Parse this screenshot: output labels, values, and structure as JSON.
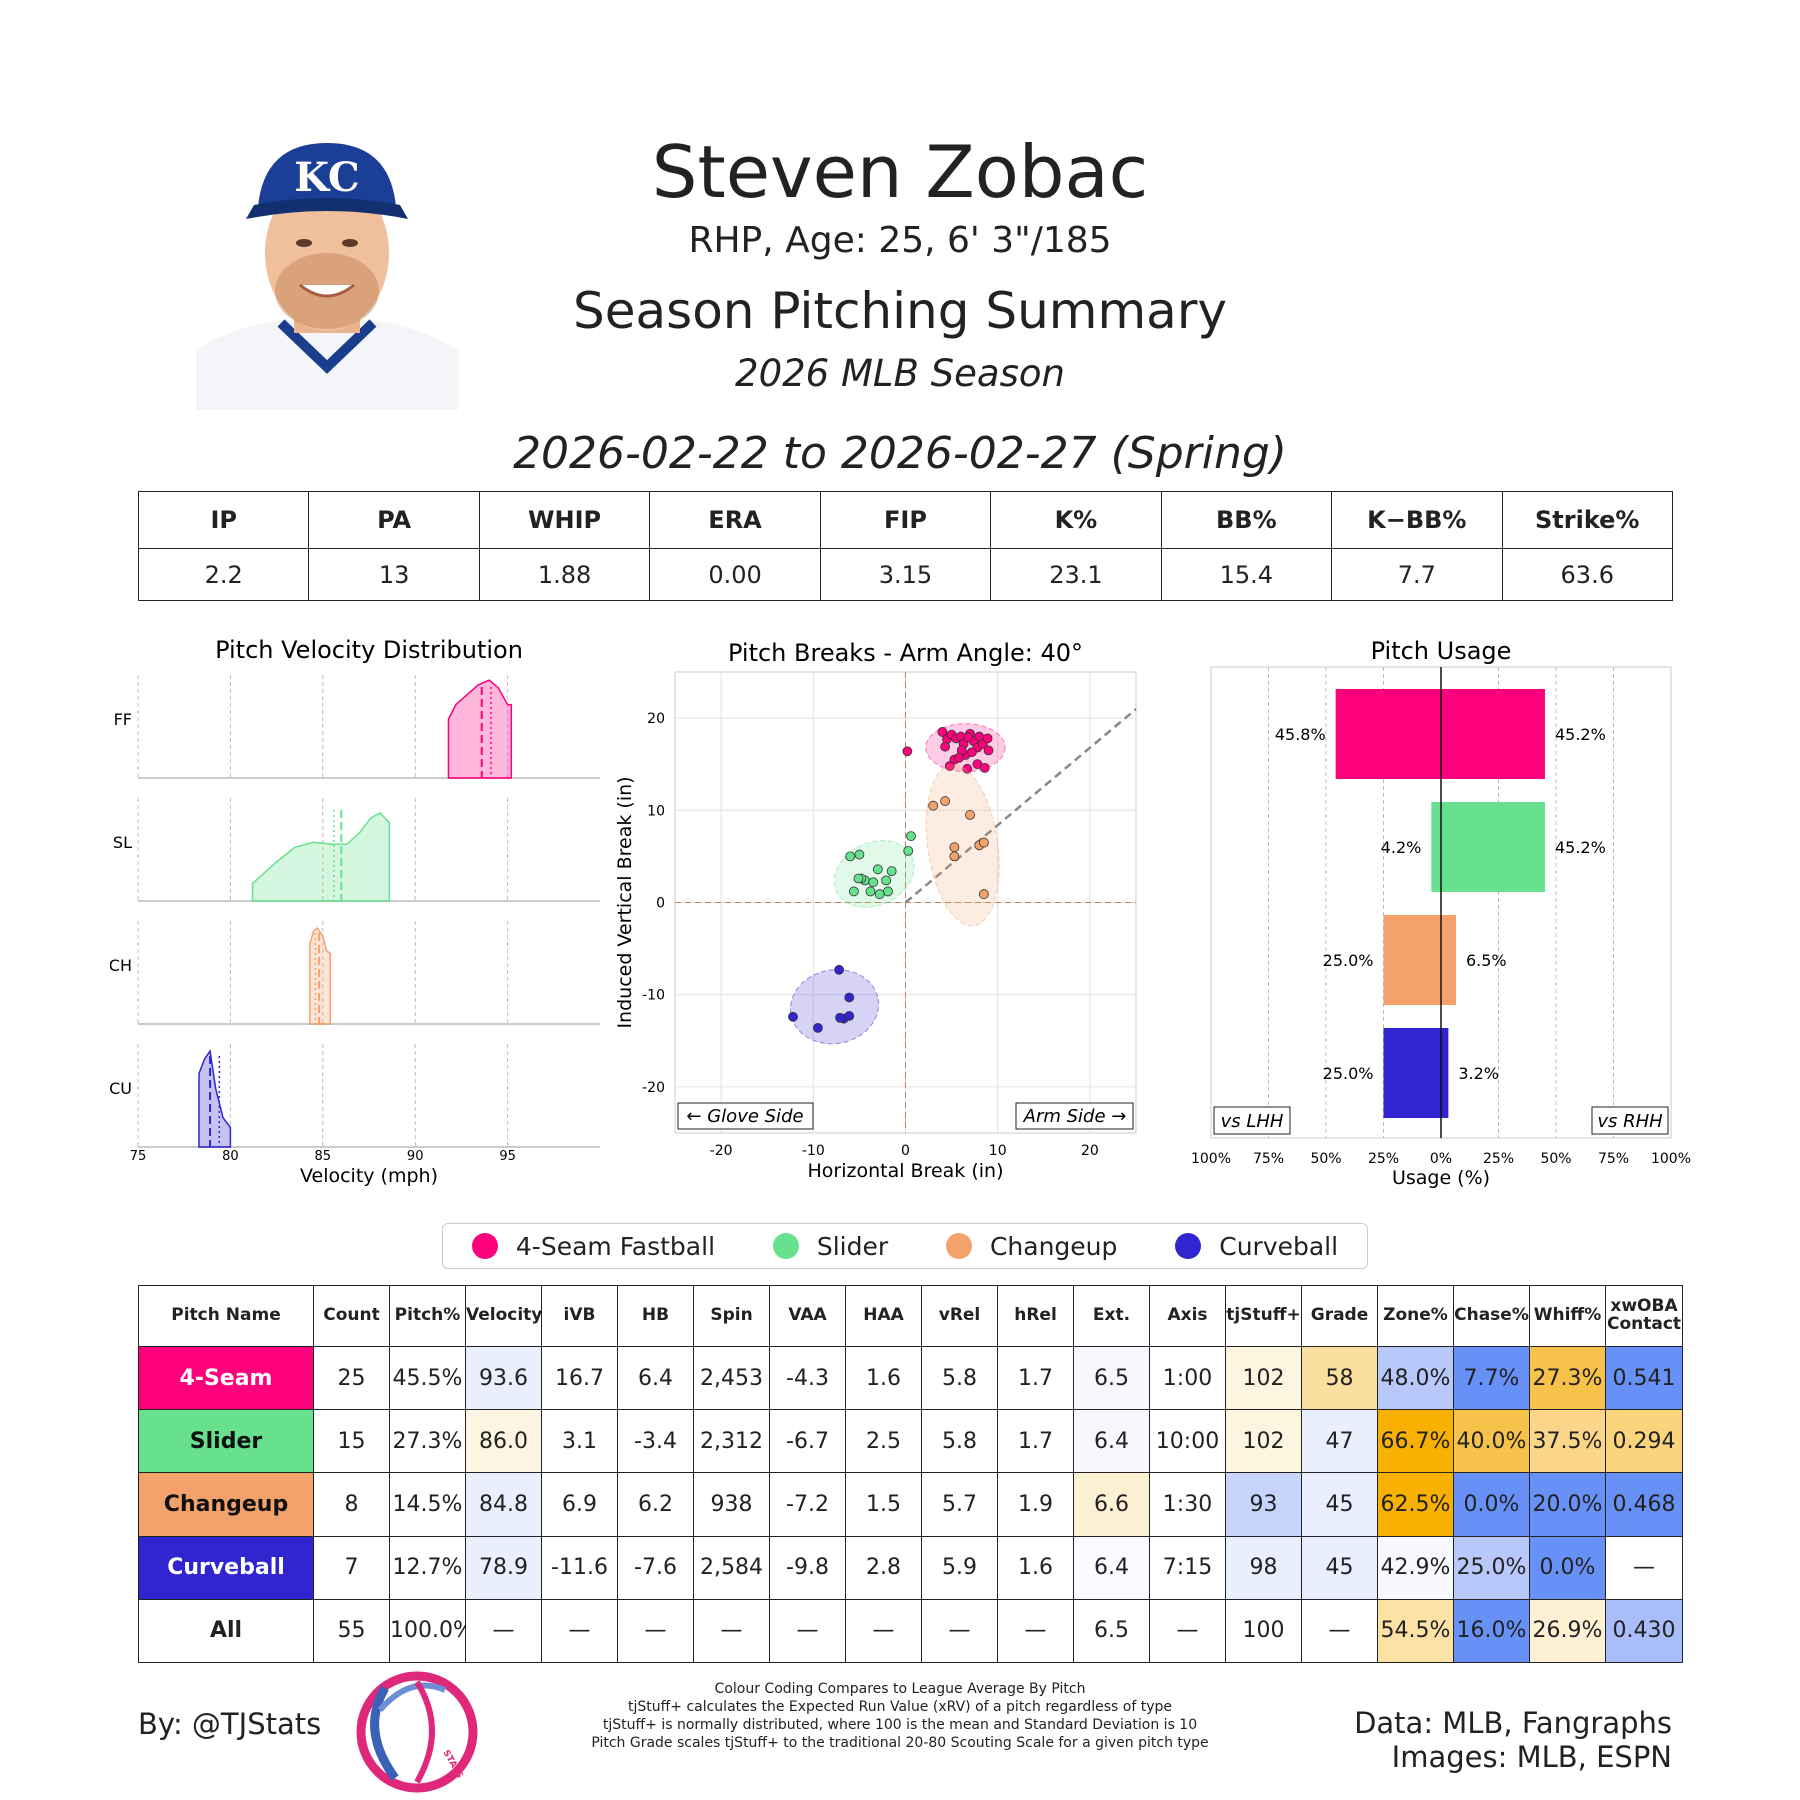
{
  "header": {
    "name": "Steven Zobac",
    "bio": "RHP, Age: 25, 6' 3\"/185",
    "summary_title": "Season Pitching Summary",
    "season": "2026 MLB Season",
    "date_range": "2026-02-22 to 2026-02-27 (Spring)",
    "cap_logo_text": "KC"
  },
  "season_stats": {
    "headers": [
      "IP",
      "PA",
      "WHIP",
      "ERA",
      "FIP",
      "K%",
      "BB%",
      "K−BB%",
      "Strike%"
    ],
    "values": [
      "2.2",
      "13",
      "1.88",
      "0.00",
      "3.15",
      "23.1",
      "15.4",
      "7.7",
      "63.6"
    ]
  },
  "pitch_colors": {
    "FF": "#FF007D",
    "SL": "#67E18D",
    "CH": "#F4A26B",
    "CU": "#3025CE"
  },
  "chart_data": [
    {
      "type": "area",
      "title": "Pitch Velocity Distribution",
      "xlabel": "Velocity (mph)",
      "xlim": [
        75,
        100
      ],
      "xticks": [
        75,
        80,
        85,
        90,
        95
      ],
      "series": [
        {
          "name": "FF",
          "x": [
            91.8,
            92.2,
            92.8,
            93.4,
            94.0,
            94.5,
            95.0,
            95.2
          ],
          "y": [
            0.6,
            0.75,
            0.85,
            0.95,
            1.0,
            0.92,
            0.75,
            0.75
          ],
          "mean": 93.6,
          "median": 94.1
        },
        {
          "name": "SL",
          "x": [
            81.2,
            82.5,
            83.5,
            84.5,
            85.5,
            86.3,
            87.0,
            87.6,
            88.1,
            88.6
          ],
          "y": [
            0.18,
            0.4,
            0.55,
            0.6,
            0.58,
            0.58,
            0.7,
            0.85,
            0.9,
            0.8
          ],
          "mean": 86.0,
          "median": 85.6
        },
        {
          "name": "CH",
          "x": [
            84.3,
            84.5,
            84.7,
            85.0,
            85.2,
            85.4
          ],
          "y": [
            0.82,
            0.95,
            0.98,
            0.9,
            0.75,
            0.72
          ],
          "mean": 84.8,
          "median": 84.6
        },
        {
          "name": "CU",
          "x": [
            78.3,
            78.6,
            78.9,
            79.2,
            79.6,
            80.0
          ],
          "y": [
            0.75,
            0.9,
            0.98,
            0.6,
            0.3,
            0.2
          ],
          "mean": 78.9,
          "median": 79.4
        }
      ]
    },
    {
      "type": "scatter",
      "title": "Pitch Breaks - Arm Angle: 40°",
      "xlabel": "Horizontal Break (in)",
      "ylabel": "Induced Vertical Break (in)",
      "xlim": [
        -25,
        25
      ],
      "ylim": [
        -25,
        25
      ],
      "xticks": [
        -20,
        -10,
        0,
        10,
        20
      ],
      "yticks": [
        -20,
        -10,
        0,
        10,
        20
      ],
      "annotations": [
        "← Glove Side",
        "Arm Side →"
      ],
      "arm_angle_deg": 40,
      "series": [
        {
          "name": "FF",
          "points": [
            [
              0.2,
              16.4
            ],
            [
              4,
              18.5
            ],
            [
              4.5,
              17.7
            ],
            [
              5,
              18.2
            ],
            [
              5.5,
              17.8
            ],
            [
              6,
              18
            ],
            [
              6.3,
              17.2
            ],
            [
              6.5,
              16
            ],
            [
              7,
              18.3
            ],
            [
              7.4,
              17.5
            ],
            [
              7.8,
              16.8
            ],
            [
              8,
              18
            ],
            [
              8.4,
              17.2
            ],
            [
              8.9,
              17.8
            ],
            [
              6.1,
              16.5
            ],
            [
              5.3,
              15.5
            ],
            [
              4.8,
              14.8
            ],
            [
              6.7,
              14.5
            ],
            [
              7.8,
              15
            ],
            [
              8.6,
              14.6
            ],
            [
              9,
              16.5
            ],
            [
              5.8,
              15.7
            ],
            [
              6.8,
              17.9
            ],
            [
              4.3,
              16.9
            ],
            [
              7.2,
              16.3
            ]
          ],
          "ellipse": {
            "cx": 6.5,
            "cy": 16.8,
            "rx": 4.3,
            "ry": 2.6,
            "rot": 0
          }
        },
        {
          "name": "SL",
          "points": [
            [
              -6,
              5
            ],
            [
              -5,
              5.2
            ],
            [
              -3,
              3.6
            ],
            [
              -1.5,
              3.4
            ],
            [
              0.6,
              7.2
            ],
            [
              0.3,
              5.6
            ],
            [
              -2.1,
              2.4
            ],
            [
              -4.4,
              2.4
            ],
            [
              -5.6,
              1.2
            ],
            [
              -3.8,
              1.2
            ],
            [
              -4.8,
              2.6
            ],
            [
              -3.5,
              2.2
            ],
            [
              -1.9,
              1.2
            ],
            [
              -2.8,
              0.9
            ],
            [
              -5.1,
              2.6
            ]
          ],
          "ellipse": {
            "cx": -3.4,
            "cy": 3.1,
            "rx": 4.5,
            "ry": 3.4,
            "rot": -25
          }
        },
        {
          "name": "CH",
          "points": [
            [
              3,
              10.5
            ],
            [
              4.3,
              11
            ],
            [
              7,
              9.5
            ],
            [
              5.3,
              6
            ],
            [
              5.3,
              5
            ],
            [
              8,
              6.2
            ],
            [
              8.5,
              6.5
            ],
            [
              8.5,
              0.9
            ]
          ],
          "ellipse": {
            "cx": 6.2,
            "cy": 6.2,
            "rx": 3.8,
            "ry": 8.8,
            "rot": -8
          }
        },
        {
          "name": "CU",
          "points": [
            [
              -7.2,
              -7.3
            ],
            [
              -12.2,
              -12.4
            ],
            [
              -9.5,
              -13.6
            ],
            [
              -6.1,
              -10.3
            ],
            [
              -6.7,
              -12.6
            ],
            [
              -6.1,
              -12.3
            ],
            [
              -7.1,
              -12.5
            ]
          ],
          "ellipse": {
            "cx": -7.7,
            "cy": -11.3,
            "rx": 4.8,
            "ry": 4.0,
            "rot": -10
          }
        }
      ]
    },
    {
      "type": "bar",
      "title": "Pitch Usage",
      "xlabel": "Usage (%)",
      "xticks": [
        "100%",
        "75%",
        "50%",
        "25%",
        "0%",
        "25%",
        "50%",
        "75%",
        "100%"
      ],
      "left_label": "vs LHH",
      "right_label": "vs RHH",
      "categories": [
        "FF",
        "SL",
        "CH",
        "CU"
      ],
      "series": [
        {
          "name": "vs LHH",
          "values": [
            45.8,
            4.2,
            25.0,
            25.0
          ],
          "labels": [
            "45.8%",
            "4.2%",
            "25.0%",
            "25.0%"
          ]
        },
        {
          "name": "vs RHH",
          "values": [
            45.2,
            45.2,
            6.5,
            3.2
          ],
          "labels": [
            "45.2%",
            "45.2%",
            "6.5%",
            "3.2%"
          ]
        }
      ]
    }
  ],
  "legend": [
    {
      "key": "FF",
      "label": "4-Seam Fastball"
    },
    {
      "key": "SL",
      "label": "Slider"
    },
    {
      "key": "CH",
      "label": "Changeup"
    },
    {
      "key": "CU",
      "label": "Curveball"
    }
  ],
  "pitch_table": {
    "headers": [
      "Pitch Name",
      "Count",
      "Pitch%",
      "Velocity",
      "iVB",
      "HB",
      "Spin",
      "VAA",
      "HAA",
      "vRel",
      "hRel",
      "Ext.",
      "Axis",
      "tjStuff+",
      "Grade",
      "Zone%",
      "Chase%",
      "Whiff%",
      "xwOBA\nContact"
    ],
    "rows": [
      {
        "name": "4-Seam",
        "key": "FF",
        "cells": [
          "25",
          "45.5%",
          "93.6",
          "16.7",
          "6.4",
          "2,453",
          "-4.3",
          "1.6",
          "5.8",
          "1.7",
          "6.5",
          "1:00",
          "102",
          "58",
          "48.0%",
          "7.7%",
          "27.3%",
          "0.541"
        ]
      },
      {
        "name": "Slider",
        "key": "SL",
        "cells": [
          "15",
          "27.3%",
          "86.0",
          "3.1",
          "-3.4",
          "2,312",
          "-6.7",
          "2.5",
          "5.8",
          "1.7",
          "6.4",
          "10:00",
          "102",
          "47",
          "66.7%",
          "40.0%",
          "37.5%",
          "0.294"
        ]
      },
      {
        "name": "Changeup",
        "key": "CH",
        "cells": [
          "8",
          "14.5%",
          "84.8",
          "6.9",
          "6.2",
          "938",
          "-7.2",
          "1.5",
          "5.7",
          "1.9",
          "6.6",
          "1:30",
          "93",
          "45",
          "62.5%",
          "0.0%",
          "20.0%",
          "0.468"
        ]
      },
      {
        "name": "Curveball",
        "key": "CU",
        "cells": [
          "7",
          "12.7%",
          "78.9",
          "-11.6",
          "-7.6",
          "2,584",
          "-9.8",
          "2.8",
          "5.9",
          "1.6",
          "6.4",
          "7:15",
          "98",
          "45",
          "42.9%",
          "25.0%",
          "0.0%",
          "—"
        ]
      },
      {
        "name": "All",
        "key": "ALL",
        "cells": [
          "55",
          "100.0%",
          "—",
          "—",
          "—",
          "—",
          "—",
          "—",
          "—",
          "—",
          "6.5",
          "—",
          "100",
          "—",
          "54.5%",
          "16.0%",
          "26.9%",
          "0.430"
        ]
      }
    ],
    "cell_colors": [
      [
        "#fff",
        "#fff",
        "#e9effd",
        "#fff",
        "#fff",
        "#fff",
        "#fff",
        "#fff",
        "#fff",
        "#fff",
        "#f6f8fe",
        "#fff",
        "#fdf5e0",
        "#fbdf9e",
        "#b9c8fb",
        "#6891f8",
        "#f7c24a",
        "#6891f8"
      ],
      [
        "#fff",
        "#fff",
        "#fdf4e2",
        "#fff",
        "#fff",
        "#fff",
        "#fff",
        "#fff",
        "#fff",
        "#fff",
        "#f6f8fe",
        "#fff",
        "#fdf5e0",
        "#e9effd",
        "#f8b100",
        "#f7c24a",
        "#fbd68a",
        "#fcd47c"
      ],
      [
        "#fff",
        "#fff",
        "#e9effd",
        "#fff",
        "#fff",
        "#fff",
        "#fff",
        "#fff",
        "#fff",
        "#fff",
        "#fdf1d4",
        "#fff",
        "#c7d5fc",
        "#e9effd",
        "#f8b100",
        "#6891f8",
        "#6891f8",
        "#6891f8"
      ],
      [
        "#fff",
        "#fff",
        "#e9effd",
        "#fff",
        "#fff",
        "#fff",
        "#fff",
        "#fff",
        "#fff",
        "#fff",
        "#f9fbfe",
        "#fff",
        "#e9effd",
        "#e9effd",
        "#f7f9fe",
        "#b9c8fb",
        "#6891f8",
        "#fff"
      ],
      [
        "#fff",
        "#fff",
        "#fff",
        "#fff",
        "#fff",
        "#fff",
        "#fff",
        "#fff",
        "#fff",
        "#fff",
        "#fff",
        "#fff",
        "#fff",
        "#fff",
        "#fde2a6",
        "#6891f8",
        "#fdf0d3",
        "#a9bdfb"
      ]
    ]
  },
  "footer": {
    "by": "By: @TJStats",
    "logo_text": "STATS",
    "notes": [
      "Colour Coding Compares to League Average By Pitch",
      "tjStuff+ calculates the Expected Run Value (xRV) of a pitch regardless of type",
      "tjStuff+ is normally distributed, where 100 is the mean and Standard Deviation is 10",
      "Pitch Grade scales tjStuff+ to the traditional 20-80 Scouting Scale for a given pitch type"
    ],
    "credits": [
      "Data: MLB, Fangraphs",
      "Images: MLB, ESPN"
    ]
  }
}
